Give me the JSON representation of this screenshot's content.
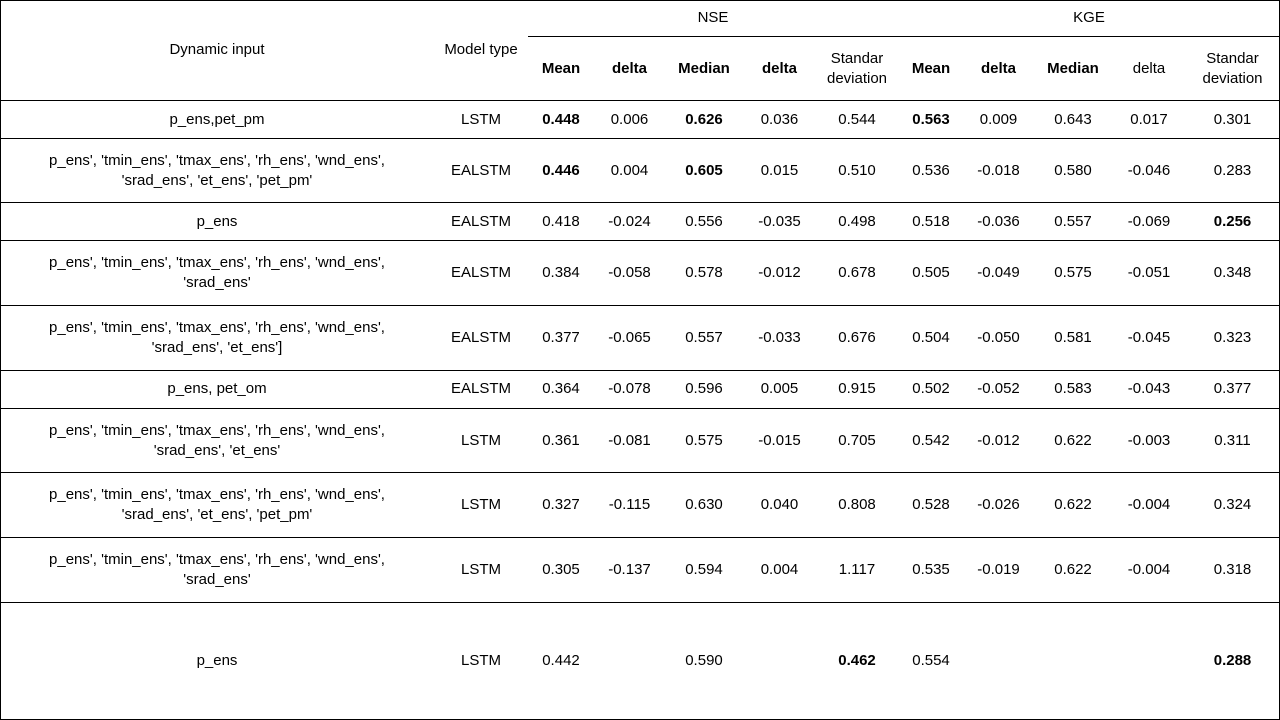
{
  "header": {
    "dynamic_input": "Dynamic input",
    "model_type": "Model type",
    "nse": "NSE",
    "kge": "KGE",
    "sub": [
      {
        "label": "Mean",
        "bold": true
      },
      {
        "label": "delta",
        "bold": true
      },
      {
        "label": "Median",
        "bold": true
      },
      {
        "label": "delta",
        "bold": true
      },
      {
        "label": "Standar deviation",
        "bold": false
      },
      {
        "label": "Mean",
        "bold": true
      },
      {
        "label": "delta",
        "bold": true
      },
      {
        "label": "Median",
        "bold": true
      },
      {
        "label": "delta",
        "bold": false
      },
      {
        "label": "Standar deviation",
        "bold": false
      }
    ]
  },
  "rows": [
    {
      "input": "p_ens,pet_pm",
      "model": "LSTM",
      "height": 38,
      "cells": [
        {
          "v": "0.448",
          "b": true
        },
        {
          "v": "0.006"
        },
        {
          "v": "0.626",
          "b": true
        },
        {
          "v": "0.036"
        },
        {
          "v": "0.544"
        },
        {
          "v": "0.563",
          "b": true
        },
        {
          "v": "0.009"
        },
        {
          "v": "0.643"
        },
        {
          "v": "0.017"
        },
        {
          "v": "0.301"
        }
      ]
    },
    {
      "input": "p_ens', 'tmin_ens', 'tmax_ens', 'rh_ens', 'wnd_ens', 'srad_ens', 'et_ens', 'pet_pm'",
      "model": "EALSTM",
      "height": 64,
      "cells": [
        {
          "v": "0.446",
          "b": true
        },
        {
          "v": "0.004"
        },
        {
          "v": "0.605",
          "b": true
        },
        {
          "v": "0.015"
        },
        {
          "v": "0.510"
        },
        {
          "v": "0.536"
        },
        {
          "v": "-0.018"
        },
        {
          "v": "0.580"
        },
        {
          "v": "-0.046"
        },
        {
          "v": "0.283"
        }
      ]
    },
    {
      "input": "p_ens",
      "model": "EALSTM",
      "height": 38,
      "cells": [
        {
          "v": "0.418"
        },
        {
          "v": "-0.024"
        },
        {
          "v": "0.556"
        },
        {
          "v": "-0.035"
        },
        {
          "v": "0.498"
        },
        {
          "v": "0.518"
        },
        {
          "v": "-0.036"
        },
        {
          "v": "0.557"
        },
        {
          "v": "-0.069"
        },
        {
          "v": "0.256",
          "b": true
        }
      ]
    },
    {
      "input": "p_ens', 'tmin_ens', 'tmax_ens', 'rh_ens', 'wnd_ens', 'srad_ens'",
      "model": "EALSTM",
      "height": 64,
      "cells": [
        {
          "v": "0.384"
        },
        {
          "v": "-0.058"
        },
        {
          "v": "0.578"
        },
        {
          "v": "-0.012"
        },
        {
          "v": "0.678"
        },
        {
          "v": "0.505"
        },
        {
          "v": "-0.049"
        },
        {
          "v": "0.575"
        },
        {
          "v": "-0.051"
        },
        {
          "v": "0.348"
        }
      ]
    },
    {
      "input": "p_ens', 'tmin_ens', 'tmax_ens', 'rh_ens', 'wnd_ens', 'srad_ens', 'et_ens']",
      "model": "EALSTM",
      "height": 65,
      "cells": [
        {
          "v": "0.377"
        },
        {
          "v": "-0.065"
        },
        {
          "v": "0.557"
        },
        {
          "v": "-0.033"
        },
        {
          "v": "0.676"
        },
        {
          "v": "0.504"
        },
        {
          "v": "-0.050"
        },
        {
          "v": "0.581"
        },
        {
          "v": "-0.045"
        },
        {
          "v": "0.323"
        }
      ]
    },
    {
      "input": "p_ens, pet_om",
      "model": "EALSTM",
      "height": 38,
      "cells": [
        {
          "v": "0.364"
        },
        {
          "v": "-0.078"
        },
        {
          "v": "0.596"
        },
        {
          "v": "0.005"
        },
        {
          "v": "0.915"
        },
        {
          "v": "0.502"
        },
        {
          "v": "-0.052"
        },
        {
          "v": "0.583"
        },
        {
          "v": "-0.043"
        },
        {
          "v": "0.377"
        }
      ]
    },
    {
      "input": "p_ens', 'tmin_ens', 'tmax_ens', 'rh_ens', 'wnd_ens', 'srad_ens', 'et_ens'",
      "model": "LSTM",
      "height": 64,
      "cells": [
        {
          "v": "0.361"
        },
        {
          "v": "-0.081"
        },
        {
          "v": "0.575"
        },
        {
          "v": "-0.015"
        },
        {
          "v": "0.705"
        },
        {
          "v": "0.542"
        },
        {
          "v": "-0.012"
        },
        {
          "v": "0.622"
        },
        {
          "v": "-0.003"
        },
        {
          "v": "0.311"
        }
      ]
    },
    {
      "input": "p_ens', 'tmin_ens', 'tmax_ens', 'rh_ens', 'wnd_ens', 'srad_ens', 'et_ens', 'pet_pm'",
      "model": "LSTM",
      "height": 65,
      "cells": [
        {
          "v": "0.327"
        },
        {
          "v": "-0.115"
        },
        {
          "v": "0.630"
        },
        {
          "v": "0.040"
        },
        {
          "v": "0.808"
        },
        {
          "v": "0.528"
        },
        {
          "v": "-0.026"
        },
        {
          "v": "0.622"
        },
        {
          "v": "-0.004"
        },
        {
          "v": "0.324"
        }
      ]
    },
    {
      "input": "p_ens', 'tmin_ens', 'tmax_ens', 'rh_ens', 'wnd_ens', 'srad_ens'",
      "model": "LSTM",
      "height": 64,
      "cells": [
        {
          "v": "0.305"
        },
        {
          "v": "-0.137"
        },
        {
          "v": "0.594"
        },
        {
          "v": "0.004"
        },
        {
          "v": "1.117"
        },
        {
          "v": "0.535"
        },
        {
          "v": "-0.019"
        },
        {
          "v": "0.622"
        },
        {
          "v": "-0.004"
        },
        {
          "v": "0.318"
        }
      ]
    },
    {
      "input": "p_ens",
      "model": "LSTM",
      "height": 117,
      "cells": [
        {
          "v": "0.442"
        },
        {
          "v": ""
        },
        {
          "v": "0.590"
        },
        {
          "v": ""
        },
        {
          "v": "0.462",
          "b": true
        },
        {
          "v": "0.554"
        },
        {
          "v": ""
        },
        {
          "v": ""
        },
        {
          "v": ""
        },
        {
          "v": "0.288",
          "b": true
        }
      ]
    }
  ]
}
